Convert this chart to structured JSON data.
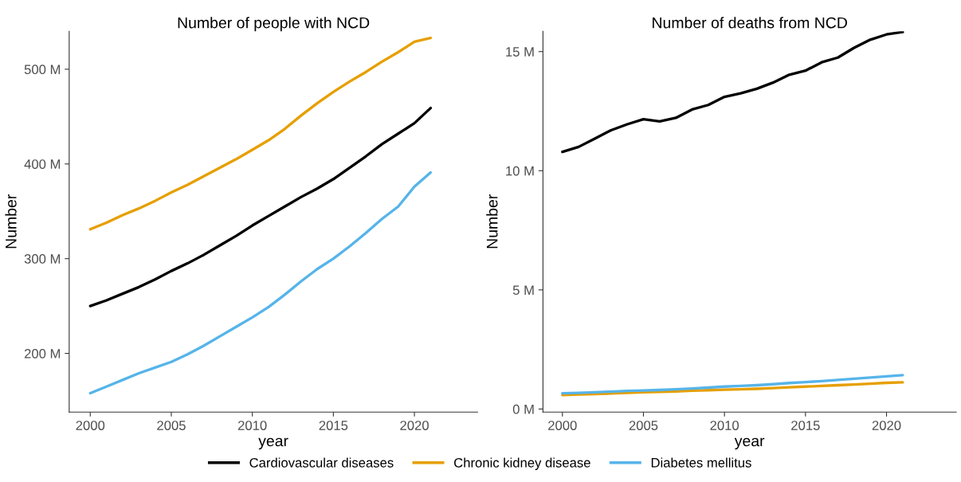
{
  "chart_data": [
    {
      "type": "line",
      "title": "Number of people with NCD",
      "xlabel": "year",
      "ylabel": "Number",
      "x": [
        2000,
        2001,
        2002,
        2003,
        2004,
        2005,
        2006,
        2007,
        2008,
        2009,
        2010,
        2011,
        2012,
        2013,
        2014,
        2015,
        2016,
        2017,
        2018,
        2019,
        2020,
        2021
      ],
      "series": [
        {
          "color": "#000000",
          "values": [
            250,
            256,
            263,
            270,
            278,
            287,
            295,
            304,
            314,
            324,
            335,
            345,
            355,
            365,
            374,
            384,
            396,
            408,
            421,
            432,
            443,
            459
          ]
        },
        {
          "color": "#e69f00",
          "values": [
            331,
            338,
            346,
            353,
            361,
            370,
            378,
            387,
            396,
            405,
            415,
            425,
            437,
            451,
            464,
            476,
            487,
            497,
            508,
            518,
            529,
            533
          ]
        },
        {
          "color": "#56b4e9",
          "values": [
            158,
            165,
            172,
            179,
            185,
            191,
            199,
            208,
            218,
            228,
            238,
            249,
            262,
            276,
            289,
            300,
            313,
            327,
            342,
            355,
            376,
            391
          ]
        }
      ],
      "xlim": [
        1998.7,
        2023.9
      ],
      "ylim": [
        138,
        540
      ],
      "xticks": [
        2000,
        2005,
        2010,
        2015,
        2020
      ],
      "yticks": [
        {
          "value": 200,
          "label": "200 M"
        },
        {
          "value": 300,
          "label": "300 M"
        },
        {
          "value": 400,
          "label": "400 M"
        },
        {
          "value": 500,
          "label": "500 M"
        }
      ],
      "grid": false,
      "marker": "none",
      "line_style": "solid"
    },
    {
      "type": "line",
      "title": "Number of deaths from NCD",
      "xlabel": "year",
      "ylabel": "Number",
      "x": [
        2000,
        2001,
        2002,
        2003,
        2004,
        2005,
        2006,
        2007,
        2008,
        2009,
        2010,
        2011,
        2012,
        2013,
        2014,
        2015,
        2016,
        2017,
        2018,
        2019,
        2020,
        2021
      ],
      "series": [
        {
          "name": "Cardiovascular diseases",
          "color": "#000000",
          "values": [
            10.79,
            11.0,
            11.35,
            11.7,
            11.95,
            12.16,
            12.07,
            12.22,
            12.57,
            12.76,
            13.1,
            13.25,
            13.44,
            13.7,
            14.03,
            14.2,
            14.55,
            14.75,
            15.16,
            15.5,
            15.72,
            15.82
          ]
        },
        {
          "name": "Chronic kidney disease",
          "color": "#e69f00",
          "values": [
            0.59,
            0.61,
            0.63,
            0.65,
            0.68,
            0.7,
            0.72,
            0.74,
            0.77,
            0.79,
            0.81,
            0.83,
            0.85,
            0.88,
            0.91,
            0.94,
            0.97,
            1.0,
            1.03,
            1.06,
            1.1,
            1.12
          ]
        },
        {
          "name": "Diabetes mellitus",
          "color": "#56b4e9",
          "values": [
            0.66,
            0.68,
            0.7,
            0.73,
            0.76,
            0.78,
            0.8,
            0.83,
            0.86,
            0.9,
            0.94,
            0.97,
            1.0,
            1.04,
            1.09,
            1.13,
            1.17,
            1.22,
            1.27,
            1.32,
            1.37,
            1.42
          ]
        }
      ],
      "xlim": [
        1998.8,
        2024.3
      ],
      "ylim": [
        -0.13,
        15.85
      ],
      "xticks": [
        2000,
        2005,
        2010,
        2015,
        2020
      ],
      "yticks": [
        {
          "value": 0,
          "label": "0 M"
        },
        {
          "value": 5,
          "label": "5 M"
        },
        {
          "value": 10,
          "label": "10 M"
        },
        {
          "value": 15,
          "label": "15 M"
        }
      ],
      "grid": false,
      "legend": "bottom",
      "marker": "none",
      "line_style": "solid"
    }
  ]
}
